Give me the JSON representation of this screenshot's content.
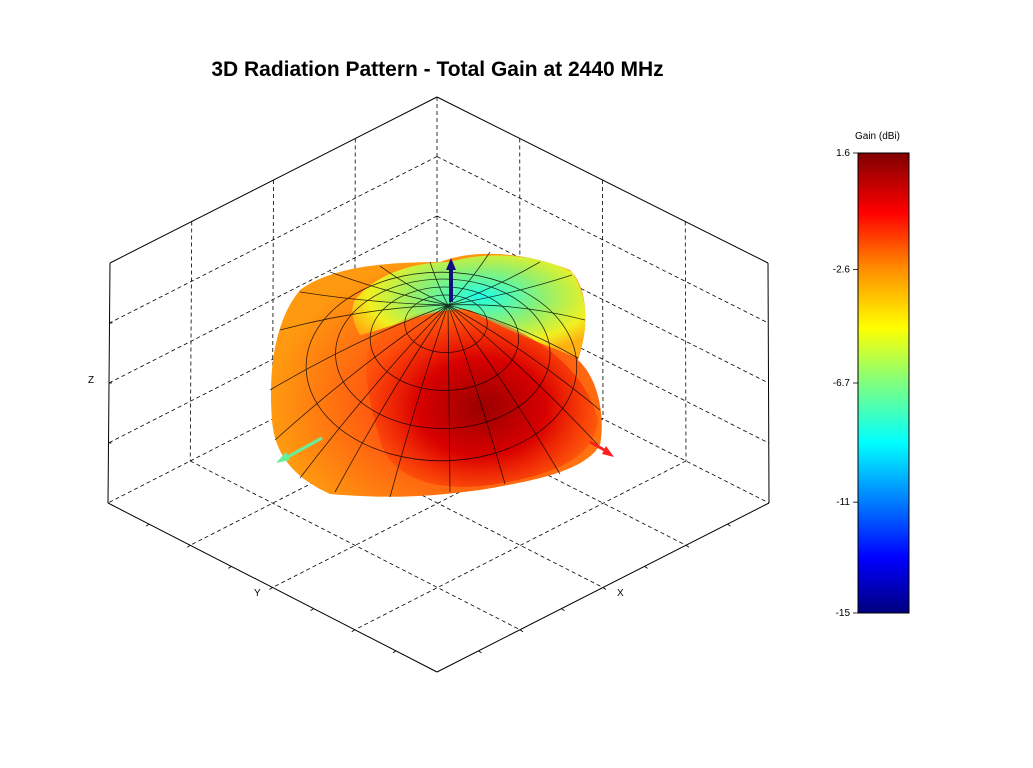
{
  "chart_data": {
    "type": "surface",
    "title": "3D Radiation Pattern - Total Gain at 2440 MHz",
    "xlabel": "X",
    "ylabel": "Y",
    "zlabel": "Z",
    "grid": true,
    "colorbar": {
      "label": "Gain (dBi)",
      "range": [
        -15,
        1.6
      ],
      "ticks": [
        1.6,
        -2.6,
        -6.7,
        -11,
        -15
      ],
      "tick_labels": [
        "1.6",
        "-2.6",
        "-6.7",
        "-11",
        "-15"
      ],
      "colormap": "jet",
      "placement": "right"
    },
    "axis_arrows": [
      {
        "axis": "x",
        "color": "#ff2020"
      },
      {
        "axis": "y",
        "color": "#66ee99"
      },
      {
        "axis": "z",
        "color": "#101080"
      }
    ],
    "pattern": {
      "max_gain_dbi": 1.6,
      "min_gain_dbi": -15,
      "description_regions": [
        "main lobe toward +X (dark red)",
        "null near +Z (cyan)"
      ]
    }
  }
}
